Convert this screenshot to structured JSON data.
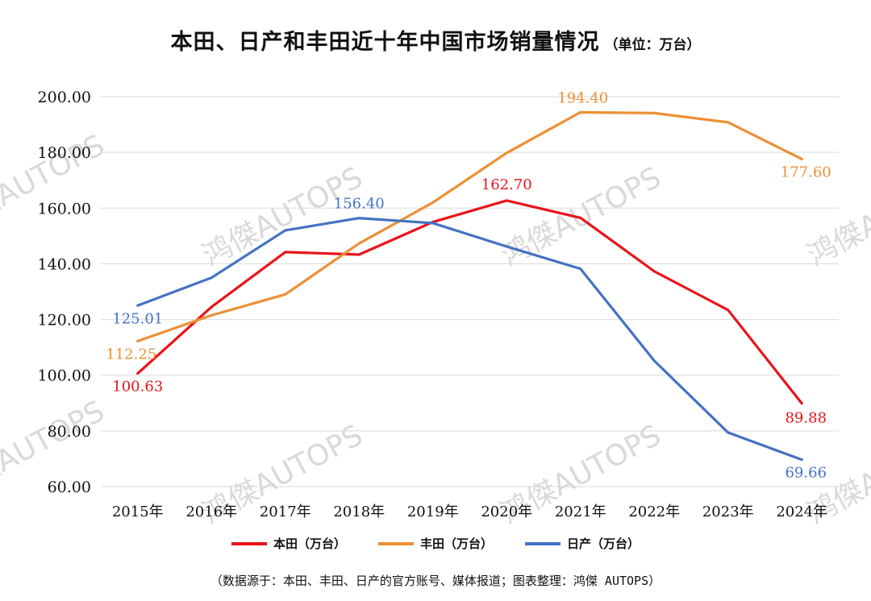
{
  "title": "本田、日产和丰田近十年中国市场销量情况",
  "unit": "（单位：万台）",
  "source": "（数据源于：本田、丰田、日产的官方账号、媒体报道；图表整理：鸿傑 AUTOPS）",
  "watermark": "鸿傑AUTOPS",
  "chart_data": {
    "type": "line",
    "title": "本田、日产和丰田近十年中国市场销量情况",
    "categories": [
      "2015年",
      "2016年",
      "2017年",
      "2018年",
      "2019年",
      "2020年",
      "2021年",
      "2022年",
      "2023年",
      "2024年"
    ],
    "ylim": [
      60,
      200
    ],
    "yticks": [
      "60.00",
      "80.00",
      "100.00",
      "120.00",
      "140.00",
      "160.00",
      "180.00",
      "200.00"
    ],
    "grid": true,
    "legend": "bottom",
    "series": [
      {
        "name": "本田（万台）",
        "color": "#e8141a",
        "values": [
          100.63,
          124.5,
          144.2,
          143.3,
          155.0,
          162.7,
          156.5,
          137.3,
          123.4,
          89.88
        ]
      },
      {
        "name": "丰田（万台）",
        "color": "#ed8f35",
        "values": [
          112.25,
          121.5,
          129.0,
          147.3,
          162.0,
          179.8,
          194.4,
          194.1,
          190.8,
          177.6
        ]
      },
      {
        "name": "日产（万台）",
        "color": "#4472c4",
        "values": [
          125.01,
          135.0,
          152.0,
          156.4,
          154.6,
          146.2,
          138.2,
          105.2,
          79.4,
          69.66
        ]
      }
    ],
    "data_labels": [
      {
        "series": 0,
        "index": 0,
        "text": "100.63"
      },
      {
        "series": 0,
        "index": 5,
        "text": "162.70"
      },
      {
        "series": 0,
        "index": 9,
        "text": "89.88"
      },
      {
        "series": 1,
        "index": 0,
        "text": "112.25"
      },
      {
        "series": 1,
        "index": 6,
        "text": "194.40"
      },
      {
        "series": 1,
        "index": 9,
        "text": "177.60"
      },
      {
        "series": 2,
        "index": 0,
        "text": "125.01"
      },
      {
        "series": 2,
        "index": 3,
        "text": "156.40"
      },
      {
        "series": 2,
        "index": 9,
        "text": "69.66"
      }
    ]
  }
}
